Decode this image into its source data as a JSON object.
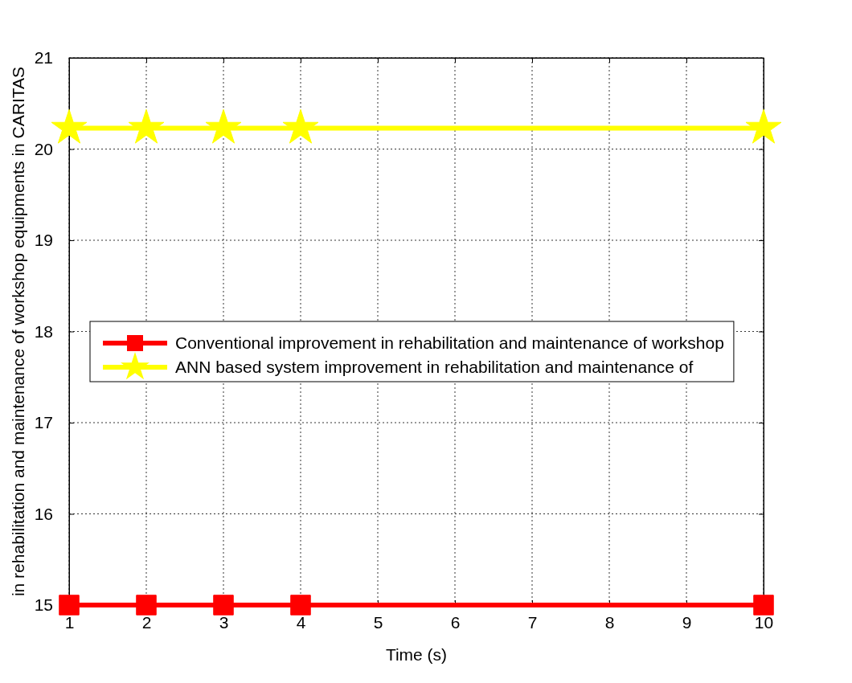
{
  "chart_data": {
    "type": "line",
    "xlabel": "Time (s)",
    "ylabel": "in rehabilitation and maintenance of workshop equipments in CARITAS",
    "x": [
      1,
      2,
      3,
      4,
      10
    ],
    "series": [
      {
        "name": "Conventional improvement in rehabilitation and maintenance of workshop",
        "color": "#ff0000",
        "marker": "square",
        "values": [
          15,
          15,
          15,
          15,
          15
        ]
      },
      {
        "name": "ANN based system improvement in rehabilitation and maintenance of",
        "color": "#ffff00",
        "marker": "star",
        "values": [
          20.23,
          20.23,
          20.23,
          20.23,
          20.23
        ]
      }
    ],
    "xlim": [
      1,
      10
    ],
    "xticks": [
      1,
      2,
      3,
      4,
      5,
      6,
      7,
      8,
      9,
      10
    ],
    "ylim": [
      15,
      21
    ],
    "yticks": [
      15,
      16,
      17,
      18,
      19,
      20,
      21
    ],
    "grid": true,
    "legend": "left",
    "line_style": "solid"
  }
}
